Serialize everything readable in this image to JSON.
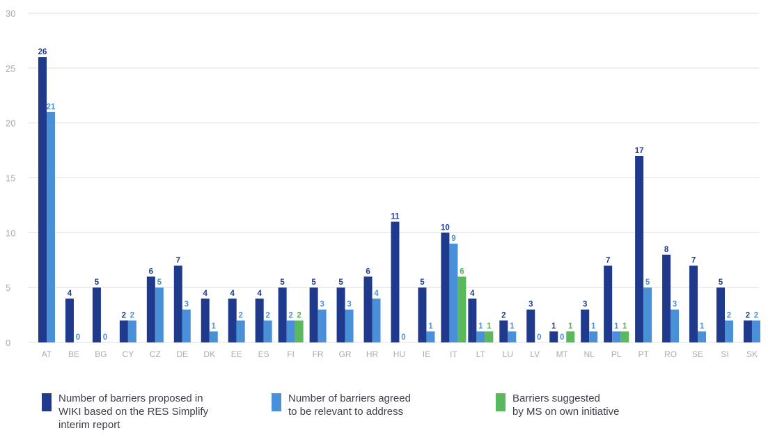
{
  "chart_data": {
    "type": "bar",
    "categories": [
      "AT",
      "BE",
      "BG",
      "CY",
      "CZ",
      "DE",
      "DK",
      "EE",
      "ES",
      "FI",
      "FR",
      "GR",
      "HR",
      "HU",
      "IE",
      "IT",
      "LT",
      "LU",
      "LV",
      "MT",
      "NL",
      "PL",
      "PT",
      "RO",
      "SE",
      "SI",
      "SK"
    ],
    "series": [
      {
        "name": "Number of barriers proposed in\nWIKI based on the RES Simplify\ninterim report",
        "color": "#1f3a8c",
        "label_color": "#1f3a8c",
        "values": [
          26,
          4,
          5,
          2,
          6,
          7,
          4,
          4,
          4,
          5,
          5,
          5,
          6,
          11,
          5,
          10,
          4,
          2,
          3,
          1,
          3,
          7,
          17,
          8,
          7,
          5,
          2
        ],
        "labels": [
          "26",
          "4",
          "5",
          "2",
          "6",
          "7",
          "4",
          "4",
          "4",
          "5",
          "5",
          "5",
          "6",
          "11",
          "5",
          "10",
          "4",
          "2",
          "3",
          "1",
          "3",
          "7",
          "17",
          "8",
          "7",
          "5",
          "2"
        ]
      },
      {
        "name": "Number of barriers agreed\nto be relevant to address",
        "color": "#4a90d9",
        "label_color": "#4a90d9",
        "values": [
          21,
          0,
          0,
          2,
          5,
          3,
          1,
          2,
          2,
          2,
          3,
          3,
          4,
          0,
          1,
          9,
          1,
          1,
          0,
          0,
          1,
          1,
          5,
          3,
          1,
          2,
          2
        ],
        "labels": [
          "21",
          "0",
          "0",
          "2",
          "5",
          "3",
          "1",
          "2",
          "2",
          "2",
          "3",
          "3",
          "4",
          "0",
          "1",
          "9",
          "1",
          "1",
          "0",
          "0",
          "1",
          "1",
          "5",
          "3",
          "1",
          "2",
          "2"
        ]
      },
      {
        "name": "Barriers suggested\nby MS on own initiative",
        "color": "#5cb85c",
        "label_color": "#4caf50",
        "values": [
          null,
          null,
          null,
          null,
          null,
          null,
          null,
          null,
          null,
          2,
          null,
          null,
          null,
          null,
          null,
          6,
          1,
          null,
          null,
          1,
          null,
          1,
          null,
          null,
          null,
          null,
          null
        ],
        "labels": [
          null,
          null,
          null,
          null,
          null,
          null,
          null,
          null,
          null,
          "2",
          null,
          null,
          null,
          null,
          null,
          "6",
          "1",
          null,
          null,
          "1",
          null,
          "1",
          null,
          null,
          null,
          null,
          null
        ]
      }
    ],
    "yticks": [
      "0",
      "5",
      "10",
      "15",
      "20",
      "25",
      "30"
    ],
    "ylim": [
      0,
      30
    ],
    "grid": true,
    "legend_position": "bottom"
  }
}
